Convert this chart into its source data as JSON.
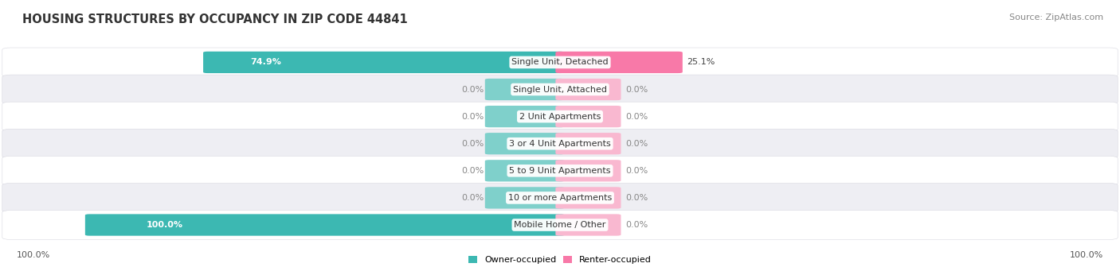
{
  "title": "HOUSING STRUCTURES BY OCCUPANCY IN ZIP CODE 44841",
  "source": "Source: ZipAtlas.com",
  "categories": [
    "Single Unit, Detached",
    "Single Unit, Attached",
    "2 Unit Apartments",
    "3 or 4 Unit Apartments",
    "5 to 9 Unit Apartments",
    "10 or more Apartments",
    "Mobile Home / Other"
  ],
  "owner_values": [
    74.9,
    0.0,
    0.0,
    0.0,
    0.0,
    0.0,
    100.0
  ],
  "renter_values": [
    25.1,
    0.0,
    0.0,
    0.0,
    0.0,
    0.0,
    0.0
  ],
  "owner_color": "#3cb8b2",
  "owner_color_light": "#7fd0cb",
  "renter_color": "#f879a8",
  "renter_color_light": "#f9b8d0",
  "bg_color": "#ffffff",
  "row_bg_color": "#ffffff",
  "row_alt_bg": "#eeeef3",
  "title_fontsize": 10.5,
  "source_fontsize": 8,
  "bar_label_fontsize": 8,
  "cat_label_fontsize": 8,
  "legend_fontsize": 8,
  "stub_owner_pct": 15.0,
  "stub_renter_pct": 12.0,
  "max_val": 100.0,
  "left_pct_label": "100.0%",
  "right_pct_label": "100.0%"
}
